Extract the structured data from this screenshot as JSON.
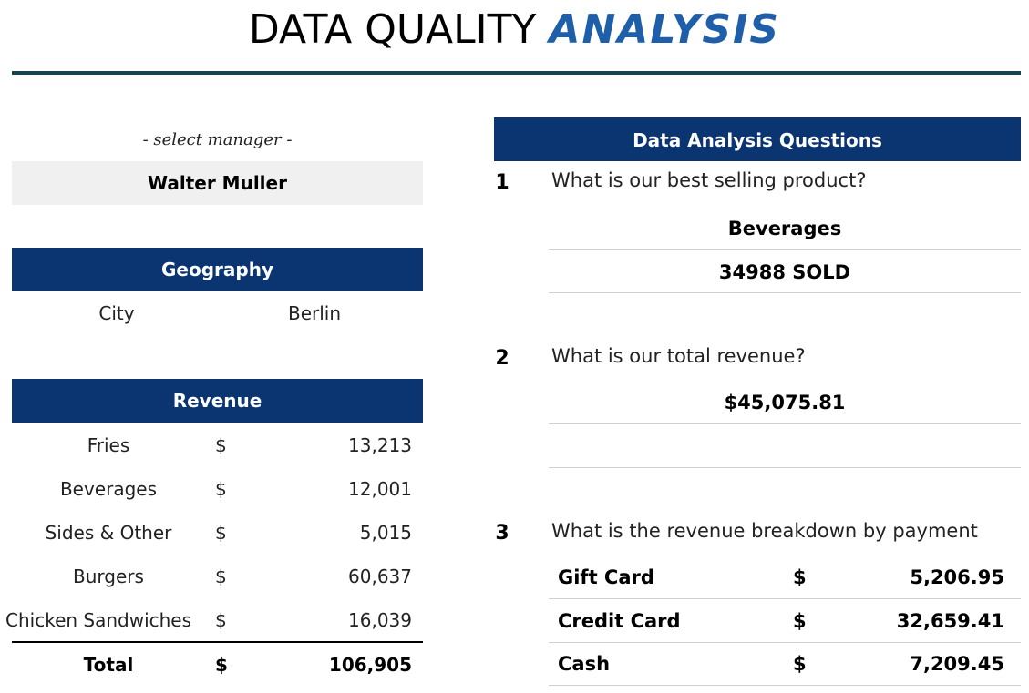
{
  "title": {
    "main": "DATA QUALITY",
    "accent": "ANALYSIS"
  },
  "manager": {
    "select_label": "- select manager -",
    "selected": "Walter Muller"
  },
  "geography": {
    "header": "Geography",
    "label": "City",
    "value": "Berlin"
  },
  "revenue": {
    "header": "Revenue",
    "currency": "$",
    "rows": [
      {
        "item": "Fries",
        "amount": "13,213"
      },
      {
        "item": "Beverages",
        "amount": "12,001"
      },
      {
        "item": "Sides & Other",
        "amount": "5,015"
      },
      {
        "item": "Burgers",
        "amount": "60,637"
      },
      {
        "item": "Chicken Sandwiches",
        "amount": "16,039"
      }
    ],
    "total": {
      "label": "Total",
      "currency": "$",
      "amount": "106,905"
    }
  },
  "questions": {
    "header": "Data Analysis Questions",
    "q1": {
      "num": "1",
      "text": "What is our best selling product?",
      "answer1": "Beverages",
      "answer2": "34988 SOLD"
    },
    "q2": {
      "num": "2",
      "text": "What is our total revenue?",
      "answer1": "$45,075.81"
    },
    "q3": {
      "num": "3",
      "text": "What is the revenue breakdown by payment",
      "rows": [
        {
          "method": "Gift Card",
          "currency": "$",
          "amount": "5,206.95"
        },
        {
          "method": "Credit Card",
          "currency": "$",
          "amount": "32,659.41"
        },
        {
          "method": "Cash",
          "currency": "$",
          "amount": "7,209.45"
        }
      ]
    }
  }
}
